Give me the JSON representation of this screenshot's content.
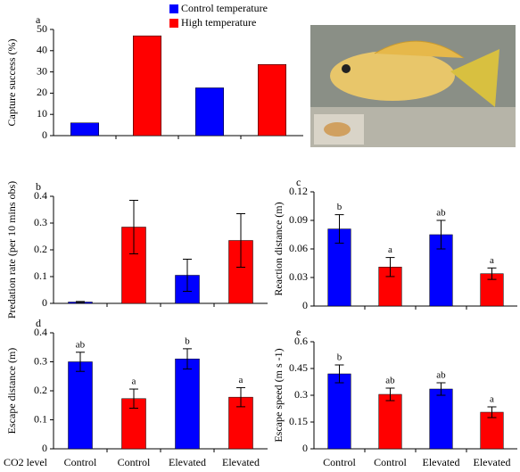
{
  "chart_data": [
    {
      "type": "bar",
      "title": "a",
      "y_label": "Capture success (%)",
      "categories": [
        null,
        null,
        null,
        null
      ],
      "values": [
        6,
        47,
        22.5,
        33.5
      ],
      "colors": [
        "#0000ff",
        "#ff0000",
        "#0000ff",
        "#ff0000"
      ],
      "ylim": [
        0,
        50
      ],
      "yticks": [
        0,
        10,
        20,
        30,
        40,
        50
      ],
      "legend": [
        {
          "name": "Control temperature",
          "color": "#0000ff"
        },
        {
          "name": "High temperature",
          "color": "#ff0000"
        }
      ]
    },
    {
      "type": "bar",
      "title": "b",
      "y_label": "Predation rate (per 10 mins obs)",
      "categories": [
        null,
        null,
        null,
        null
      ],
      "values": [
        0.005,
        0.285,
        0.105,
        0.235
      ],
      "errors": [
        0.002,
        0.1,
        0.06,
        0.1
      ],
      "colors": [
        "#0000ff",
        "#ff0000",
        "#0000ff",
        "#ff0000"
      ],
      "ylim": [
        0,
        0.4
      ],
      "yticks": [
        0,
        0.1,
        0.2,
        0.3,
        0.4
      ]
    },
    {
      "type": "bar",
      "title": "c",
      "y_label": "Reaction distance (m)",
      "categories": [
        null,
        null,
        null,
        null
      ],
      "values": [
        0.081,
        0.041,
        0.075,
        0.034
      ],
      "errors": [
        0.015,
        0.01,
        0.015,
        0.006
      ],
      "letters": [
        "b",
        "a",
        "ab",
        "a"
      ],
      "colors": [
        "#0000ff",
        "#ff0000",
        "#0000ff",
        "#ff0000"
      ],
      "ylim": [
        0,
        0.12
      ],
      "yticks": [
        0,
        0.03,
        0.06,
        0.09,
        0.12
      ]
    },
    {
      "type": "bar",
      "title": "d",
      "y_label": "Escape distance (m)",
      "x_label": "CO2 level",
      "categories": [
        "Control",
        "Control",
        "Elevated",
        "Elevated"
      ],
      "values": [
        0.3,
        0.173,
        0.31,
        0.178
      ],
      "errors": [
        0.033,
        0.033,
        0.035,
        0.033
      ],
      "letters": [
        "ab",
        "a",
        "b",
        "a"
      ],
      "colors": [
        "#0000ff",
        "#ff0000",
        "#0000ff",
        "#ff0000"
      ],
      "ylim": [
        0,
        0.4
      ],
      "yticks": [
        0,
        0.1,
        0.2,
        0.3,
        0.4
      ]
    },
    {
      "type": "bar",
      "title": "e",
      "y_label": "Escape speed (m s -1)",
      "categories": [
        "Control",
        "Control",
        "Elevated",
        "Elevated"
      ],
      "values": [
        0.42,
        0.305,
        0.335,
        0.205
      ],
      "errors": [
        0.05,
        0.035,
        0.035,
        0.03
      ],
      "letters": [
        "b",
        "ab",
        "ab",
        "a"
      ],
      "colors": [
        "#0000ff",
        "#ff0000",
        "#0000ff",
        "#ff0000"
      ],
      "ylim": [
        0,
        0.6
      ],
      "yticks": [
        0,
        0.15,
        0.3,
        0.45,
        0.6
      ]
    }
  ]
}
